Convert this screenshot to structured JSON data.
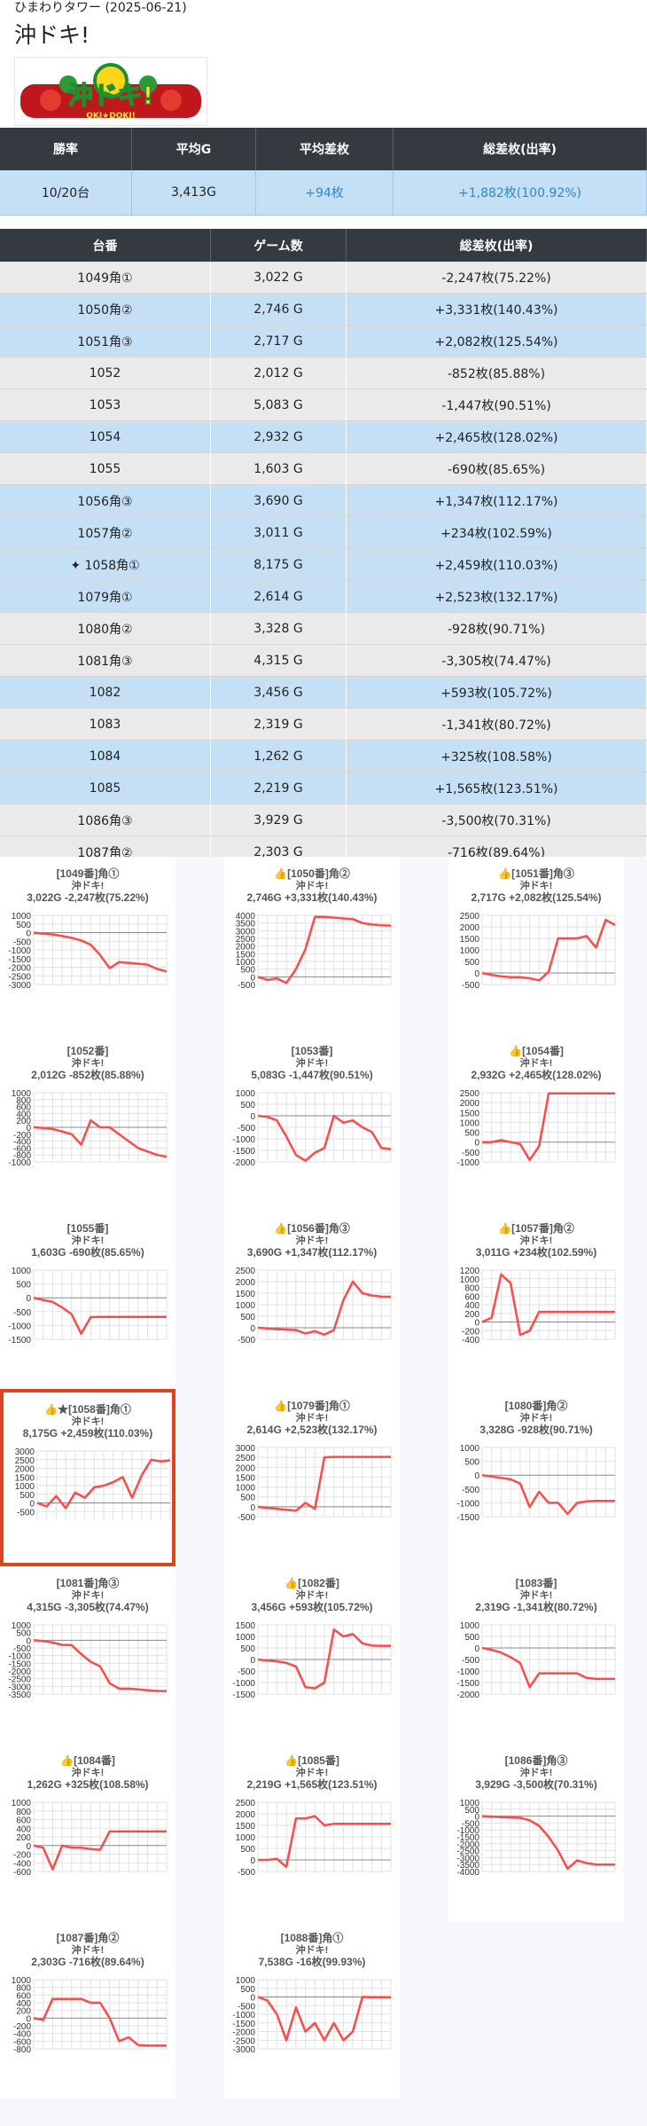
{
  "header": {
    "store": "ひまわりタワー",
    "date": "(2025-06-21)",
    "machine": "沖ドキ!"
  },
  "logo": {
    "text": "沖ドキ!",
    "sub": "OKI★DOKI!"
  },
  "summary": {
    "headers": [
      "勝率",
      "平均G",
      "平均差枚",
      "総差枚(出率)"
    ],
    "values": [
      "10/20台",
      "3,413G",
      "+94枚",
      "+1,882枚(100.92%)"
    ]
  },
  "table": {
    "headers": [
      "台番",
      "ゲーム数",
      "総差枚(出率)"
    ],
    "rows": [
      {
        "no": "1049角①",
        "games": "3,022 G",
        "diff": "-2,247枚(75.22%)"
      },
      {
        "no": "1050角②",
        "games": "2,746 G",
        "diff": "+3,331枚(140.43%)"
      },
      {
        "no": "1051角③",
        "games": "2,717 G",
        "diff": "+2,082枚(125.54%)"
      },
      {
        "no": "1052",
        "games": "2,012 G",
        "diff": "-852枚(85.88%)"
      },
      {
        "no": "1053",
        "games": "5,083 G",
        "diff": "-1,447枚(90.51%)"
      },
      {
        "no": "1054",
        "games": "2,932 G",
        "diff": "+2,465枚(128.02%)"
      },
      {
        "no": "1055",
        "games": "1,603 G",
        "diff": "-690枚(85.65%)"
      },
      {
        "no": "1056角③",
        "games": "3,690 G",
        "diff": "+1,347枚(112.17%)"
      },
      {
        "no": "1057角②",
        "games": "3,011 G",
        "diff": "+234枚(102.59%)"
      },
      {
        "no": "1058角①",
        "games": "8,175 G",
        "diff": "+2,459枚(110.03%)"
      },
      {
        "no": "1079角①",
        "games": "2,614 G",
        "diff": "+2,523枚(132.17%)"
      },
      {
        "no": "1080角②",
        "games": "3,328 G",
        "diff": "-928枚(90.71%)"
      },
      {
        "no": "1081角③",
        "games": "4,315 G",
        "diff": "-3,305枚(74.47%)"
      },
      {
        "no": "1082",
        "games": "3,456 G",
        "diff": "+593枚(105.72%)"
      },
      {
        "no": "1083",
        "games": "2,319 G",
        "diff": "-1,341枚(80.72%)"
      },
      {
        "no": "1084",
        "games": "1,262 G",
        "diff": "+325枚(108.58%)"
      },
      {
        "no": "1085",
        "games": "2,219 G",
        "diff": "+1,565枚(123.51%)"
      },
      {
        "no": "1086角③",
        "games": "3,929 G",
        "diff": "-3,500枚(70.31%)"
      },
      {
        "no": "1087角②",
        "games": "2,303 G",
        "diff": "-716枚(89.64%)"
      },
      {
        "no": "1088角①",
        "games": "7,538 G",
        "diff": "-16枚(99.93%)"
      }
    ]
  },
  "cards_label": "沖ドキ!",
  "colors": {
    "line": "#ff4a4a",
    "dark": "#343a40",
    "plus_row": "#c5e0f5",
    "minus_row": "#eaeaea",
    "highlight": "#d9451d"
  },
  "chart_data": [
    {
      "type": "line",
      "title": "[1049番]角①",
      "subtitle": "3,022G -2,247枚(75.22%)",
      "ylim": [
        -3000,
        1000
      ],
      "yticks": [
        1000,
        500,
        0,
        -500,
        -1000,
        -1500,
        -2000,
        -2500,
        -3000
      ],
      "y": [
        0,
        -60,
        -100,
        -200,
        -300,
        -450,
        -700,
        -1300,
        -2050,
        -1700,
        -1750,
        -1800,
        -1850,
        -2100,
        -2247
      ]
    },
    {
      "type": "line",
      "title": "[1050番]角②",
      "subtitle": "2,746G +3,331枚(140.43%)",
      "ylim": [
        -500,
        4000
      ],
      "yticks": [
        4000,
        3500,
        3000,
        2500,
        2000,
        1500,
        1000,
        500,
        0,
        -500
      ],
      "y": [
        0,
        -200,
        -100,
        -400,
        500,
        1800,
        3900,
        3900,
        3850,
        3800,
        3750,
        3500,
        3400,
        3350,
        3331
      ]
    },
    {
      "type": "line",
      "title": "[1051番]角③",
      "subtitle": "2,717G +2,082枚(125.54%)",
      "ylim": [
        -500,
        2500
      ],
      "yticks": [
        2500,
        2000,
        1500,
        1000,
        500,
        0,
        -500
      ],
      "y": [
        0,
        -80,
        -150,
        -180,
        -180,
        -230,
        -320,
        50,
        1500,
        1500,
        1500,
        1600,
        1100,
        2300,
        2082
      ]
    },
    {
      "type": "line",
      "title": "[1052番]",
      "subtitle": "2,012G -852枚(85.88%)",
      "ylim": [
        -1000,
        1000
      ],
      "yticks": [
        1000,
        800,
        600,
        400,
        200,
        0,
        -200,
        -400,
        -600,
        -800,
        -1000
      ],
      "y": [
        0,
        -20,
        -50,
        -120,
        -200,
        -500,
        200,
        0,
        0,
        -200,
        -400,
        -600,
        -700,
        -800,
        -852
      ]
    },
    {
      "type": "line",
      "title": "[1053番]",
      "subtitle": "5,083G -1,447枚(90.51%)",
      "ylim": [
        -2000,
        1000
      ],
      "yticks": [
        1000,
        500,
        0,
        -500,
        -1000,
        -1500,
        -2000
      ],
      "y": [
        0,
        -50,
        -200,
        -900,
        -1700,
        -1950,
        -1600,
        -1400,
        0,
        -300,
        -200,
        -500,
        -700,
        -1400,
        -1447
      ]
    },
    {
      "type": "line",
      "title": "[1054番]",
      "subtitle": "2,932G +2,465枚(128.02%)",
      "ylim": [
        -1000,
        2500
      ],
      "yticks": [
        2500,
        2000,
        1500,
        1000,
        500,
        0,
        -500,
        -1000
      ],
      "y": [
        0,
        0,
        100,
        0,
        -100,
        -900,
        -200,
        2465,
        2465,
        2465,
        2465,
        2465,
        2465,
        2465,
        2465
      ]
    },
    {
      "type": "line",
      "title": "[1055番]",
      "subtitle": "1,603G -690枚(85.65%)",
      "ylim": [
        -1500,
        1000
      ],
      "yticks": [
        1000,
        500,
        0,
        -500,
        -1000,
        -1500
      ],
      "y": [
        0,
        -80,
        -150,
        -350,
        -600,
        -1300,
        -700,
        -690,
        -690,
        -690,
        -690,
        -690,
        -690,
        -690,
        -690
      ]
    },
    {
      "type": "line",
      "title": "[1056番]角③",
      "subtitle": "3,690G +1,347枚(112.17%)",
      "ylim": [
        -500,
        2500
      ],
      "yticks": [
        2500,
        2000,
        1500,
        1000,
        500,
        0,
        -500
      ],
      "y": [
        0,
        -30,
        -60,
        -80,
        -100,
        -250,
        -150,
        -300,
        -100,
        1200,
        2000,
        1500,
        1400,
        1350,
        1347
      ]
    },
    {
      "type": "line",
      "title": "[1057番]角②",
      "subtitle": "3,011G +234枚(102.59%)",
      "ylim": [
        -400,
        1200
      ],
      "yticks": [
        1200,
        1000,
        800,
        600,
        400,
        200,
        0,
        -200,
        -400
      ],
      "y": [
        0,
        100,
        1100,
        900,
        -300,
        -200,
        234,
        234,
        234,
        234,
        234,
        234,
        234,
        234,
        234
      ]
    },
    {
      "type": "line",
      "title": "★[1058番]角①",
      "subtitle": "8,175G +2,459枚(110.03%)",
      "ylim": [
        -1000,
        3000
      ],
      "yticks": [
        3000,
        2500,
        2000,
        1500,
        1000,
        500,
        0,
        -500
      ],
      "y": [
        0,
        -200,
        400,
        -300,
        600,
        300,
        900,
        1000,
        1200,
        1500,
        300,
        1600,
        2500,
        2400,
        2459
      ]
    },
    {
      "type": "line",
      "title": "[1079番]角①",
      "subtitle": "2,614G +2,523枚(132.17%)",
      "ylim": [
        -500,
        3000
      ],
      "yticks": [
        3000,
        2500,
        2000,
        1500,
        1000,
        500,
        0,
        -500
      ],
      "y": [
        0,
        -60,
        -100,
        -150,
        -200,
        200,
        -100,
        2500,
        2523,
        2523,
        2523,
        2523,
        2523,
        2523,
        2523
      ]
    },
    {
      "type": "line",
      "title": "[1080番]角②",
      "subtitle": "3,328G -928枚(90.71%)",
      "ylim": [
        -1500,
        1000
      ],
      "yticks": [
        1000,
        500,
        0,
        -500,
        -1000,
        -1500
      ],
      "y": [
        0,
        -50,
        -100,
        -150,
        -300,
        -1150,
        -600,
        -1000,
        -1000,
        -1400,
        -1000,
        -950,
        -928,
        -928,
        -928
      ]
    },
    {
      "type": "line",
      "title": "[1081番]角③",
      "subtitle": "4,315G -3,305枚(74.47%)",
      "ylim": [
        -3500,
        1000
      ],
      "yticks": [
        1000,
        500,
        0,
        -500,
        -1000,
        -1500,
        -2000,
        -2500,
        -3000,
        -3500
      ],
      "y": [
        0,
        -50,
        -150,
        -300,
        -320,
        -900,
        -1400,
        -1700,
        -2800,
        -3150,
        -3150,
        -3200,
        -3250,
        -3300,
        -3305
      ]
    },
    {
      "type": "line",
      "title": "[1082番]",
      "subtitle": "3,456G +593枚(105.72%)",
      "ylim": [
        -1500,
        1500
      ],
      "yticks": [
        1500,
        1000,
        500,
        0,
        -500,
        -1000,
        -1500
      ],
      "y": [
        0,
        -50,
        -80,
        -150,
        -300,
        -1200,
        -1250,
        -1000,
        1300,
        1000,
        1100,
        700,
        600,
        593,
        593
      ]
    },
    {
      "type": "line",
      "title": "[1083番]",
      "subtitle": "2,319G -1,341枚(80.72%)",
      "ylim": [
        -2000,
        1000
      ],
      "yticks": [
        1000,
        500,
        0,
        -500,
        -1000,
        -1500,
        -2000
      ],
      "y": [
        0,
        -80,
        -200,
        -400,
        -650,
        -1700,
        -1100,
        -1100,
        -1100,
        -1100,
        -1100,
        -1300,
        -1341,
        -1341,
        -1341
      ]
    },
    {
      "type": "line",
      "title": "[1084番]",
      "subtitle": "1,262G +325枚(108.58%)",
      "ylim": [
        -600,
        1000
      ],
      "yticks": [
        1000,
        800,
        600,
        400,
        200,
        0,
        -200,
        -400,
        -600
      ],
      "y": [
        0,
        -50,
        -550,
        0,
        -50,
        -50,
        -80,
        -100,
        325,
        325,
        325,
        325,
        325,
        325,
        325
      ]
    },
    {
      "type": "line",
      "title": "[1085番]",
      "subtitle": "2,219G +1,565枚(123.51%)",
      "ylim": [
        -500,
        2500
      ],
      "yticks": [
        2500,
        2000,
        1500,
        1000,
        500,
        0,
        -500
      ],
      "y": [
        0,
        0,
        50,
        -300,
        1800,
        1800,
        1900,
        1500,
        1565,
        1565,
        1565,
        1565,
        1565,
        1565,
        1565
      ]
    },
    {
      "type": "line",
      "title": "[1086番]角③",
      "subtitle": "3,929G -3,500枚(70.31%)",
      "ylim": [
        -4000,
        1000
      ],
      "yticks": [
        1000,
        500,
        0,
        -500,
        -1000,
        -1500,
        -2000,
        -2500,
        -3000,
        -3500,
        -4000
      ],
      "y": [
        0,
        -30,
        -80,
        -100,
        -120,
        -300,
        -700,
        -1500,
        -2500,
        -3800,
        -3200,
        -3400,
        -3500,
        -3500,
        -3500
      ]
    },
    {
      "type": "line",
      "title": "[1087番]角②",
      "subtitle": "2,303G -716枚(89.64%)",
      "ylim": [
        -800,
        1000
      ],
      "yticks": [
        1000,
        800,
        600,
        400,
        200,
        0,
        -200,
        -400,
        -600,
        -800
      ],
      "y": [
        0,
        -50,
        500,
        500,
        500,
        500,
        400,
        400,
        0,
        -600,
        -500,
        -700,
        -716,
        -716,
        -716
      ]
    },
    {
      "type": "line",
      "title": "[1088番]角①",
      "subtitle": "7,538G -16枚(99.93%)",
      "ylim": [
        -3000,
        1000
      ],
      "yticks": [
        1000,
        500,
        0,
        -500,
        -1000,
        -1500,
        -2000,
        -2500,
        -3000
      ],
      "y": [
        0,
        -200,
        -1000,
        -2500,
        -600,
        -2000,
        -1500,
        -2500,
        -1500,
        -2500,
        -2000,
        0,
        -16,
        -16,
        -16
      ]
    }
  ]
}
